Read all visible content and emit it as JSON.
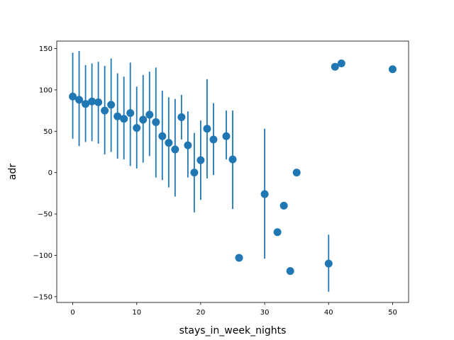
{
  "chart_data": {
    "type": "scatter",
    "title": "",
    "xlabel": "stays_in_week_nights",
    "ylabel": "adr",
    "xlim": [
      -2.5,
      52.5
    ],
    "ylim": [
      -157,
      159
    ],
    "xticks": [
      0,
      10,
      20,
      30,
      40,
      50
    ],
    "yticks": [
      -150,
      -100,
      -50,
      0,
      50,
      100,
      150
    ],
    "grid": false,
    "legend": "none",
    "color": "#1f77b4",
    "points": [
      {
        "x": 0,
        "y": 92,
        "low": 41,
        "high": 145
      },
      {
        "x": 1,
        "y": 88,
        "low": 32,
        "high": 147
      },
      {
        "x": 2,
        "y": 83,
        "low": 37,
        "high": 130
      },
      {
        "x": 3,
        "y": 86,
        "low": 38,
        "high": 132
      },
      {
        "x": 4,
        "y": 85,
        "low": 35,
        "high": 134
      },
      {
        "x": 5,
        "y": 75,
        "low": 22,
        "high": 129
      },
      {
        "x": 6,
        "y": 82,
        "low": 25,
        "high": 138
      },
      {
        "x": 7,
        "y": 68,
        "low": 17,
        "high": 120
      },
      {
        "x": 8,
        "y": 65,
        "low": 16,
        "high": 116
      },
      {
        "x": 9,
        "y": 72,
        "low": 8,
        "high": 133
      },
      {
        "x": 10,
        "y": 54,
        "low": 5,
        "high": 104
      },
      {
        "x": 11,
        "y": 64,
        "low": 12,
        "high": 118
      },
      {
        "x": 12,
        "y": 70,
        "low": 20,
        "high": 122
      },
      {
        "x": 13,
        "y": 61,
        "low": -6,
        "high": 127
      },
      {
        "x": 14,
        "y": 44,
        "low": -9,
        "high": 99
      },
      {
        "x": 15,
        "y": 36,
        "low": -18,
        "high": 91
      },
      {
        "x": 16,
        "y": 28,
        "low": -29,
        "high": 89
      },
      {
        "x": 17,
        "y": 67,
        "low": 40,
        "high": 94
      },
      {
        "x": 18,
        "y": 33,
        "low": -6,
        "high": 74
      },
      {
        "x": 19,
        "y": 0,
        "low": -48,
        "high": 48
      },
      {
        "x": 20,
        "y": 15,
        "low": -33,
        "high": 63
      },
      {
        "x": 21,
        "y": 53,
        "low": -7,
        "high": 113
      },
      {
        "x": 22,
        "y": 40,
        "low": -3,
        "high": 84
      },
      {
        "x": 24,
        "y": 44,
        "low": 16,
        "high": 75
      },
      {
        "x": 25,
        "y": 16,
        "low": -44,
        "high": 75
      },
      {
        "x": 26,
        "y": -103,
        "low": -103,
        "high": -103
      },
      {
        "x": 30,
        "y": -26,
        "low": -104,
        "high": 53
      },
      {
        "x": 32,
        "y": -72,
        "low": -72,
        "high": -72
      },
      {
        "x": 33,
        "y": -40,
        "low": -40,
        "high": -40
      },
      {
        "x": 34,
        "y": -119,
        "low": -119,
        "high": -119
      },
      {
        "x": 35,
        "y": 0,
        "low": 0,
        "high": 0
      },
      {
        "x": 40,
        "y": -110,
        "low": -144,
        "high": -75
      },
      {
        "x": 41,
        "y": 128,
        "low": 128,
        "high": 128
      },
      {
        "x": 42,
        "y": 132,
        "low": 132,
        "high": 132
      },
      {
        "x": 50,
        "y": 125,
        "low": 125,
        "high": 125
      }
    ]
  }
}
